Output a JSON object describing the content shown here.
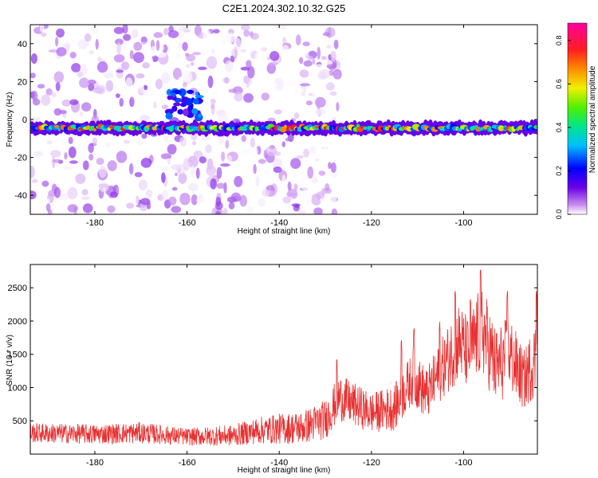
{
  "title": "C2E1.2024.302.10.32.G25",
  "chart_data": [
    {
      "type": "heatmap",
      "xlabel": "Height of straight line (km)",
      "ylabel": "Frequency (Hz)",
      "xlim": [
        -194,
        -84
      ],
      "ylim": [
        -50,
        50
      ],
      "xticks": [
        -180,
        -160,
        -140,
        -120,
        -100
      ],
      "yticks": [
        -40,
        -20,
        0,
        20,
        40
      ],
      "colorbar": {
        "label": "Normalized spectral amplitude",
        "range": [
          0,
          0.88
        ],
        "ticks": [
          0.0,
          0.2,
          0.4,
          0.6,
          0.8
        ],
        "colormap": "rainbow (white-purple-blue-cyan-green-yellow-orange-red-magenta)"
      },
      "features": [
        {
          "description": "main band",
          "x_range": [
            -194,
            -84
          ],
          "frequency_center": -4.5,
          "amplitude_range": [
            0.2,
            0.8
          ]
        },
        {
          "description": "secondary patch",
          "x_range": [
            -164,
            -157
          ],
          "frequency_range": [
            0,
            15
          ],
          "amplitude_range": [
            0.1,
            0.3
          ]
        },
        {
          "description": "diffuse noise",
          "x_range": [
            -194,
            -127
          ],
          "frequency_range": [
            -50,
            50
          ],
          "amplitude_range": [
            0.0,
            0.1
          ]
        }
      ]
    },
    {
      "type": "line",
      "xlabel": "Height of straight line (km)",
      "ylabel": "SNR (10 * v/v)",
      "xlim": [
        -194,
        -84
      ],
      "ylim": [
        0,
        2850
      ],
      "xticks": [
        -180,
        -160,
        -140,
        -120,
        -100
      ],
      "yticks": [
        500,
        1000,
        1500,
        2000,
        2500
      ],
      "series_color": "#e83030",
      "envelope": {
        "x": [
          -194,
          -180,
          -170,
          -160,
          -150,
          -145,
          -140,
          -135,
          -130,
          -127,
          -120,
          -115,
          -111,
          -108,
          -105,
          -101,
          -99,
          -96,
          -93,
          -90,
          -87,
          -84
        ],
        "y": [
          320,
          300,
          320,
          260,
          280,
          350,
          380,
          400,
          520,
          850,
          620,
          700,
          1150,
          900,
          1250,
          1700,
          1500,
          1900,
          1300,
          1500,
          1100,
          1500
        ],
        "amp": [
          150,
          150,
          160,
          130,
          160,
          200,
          230,
          250,
          300,
          350,
          300,
          350,
          400,
          400,
          450,
          600,
          550,
          700,
          600,
          600,
          450,
          600
        ]
      },
      "peaks": [
        {
          "x": -96.3,
          "y": 2820
        },
        {
          "x": -98.5,
          "y": 2350
        },
        {
          "x": -101.8,
          "y": 2470
        },
        {
          "x": -90.5,
          "y": 2460
        },
        {
          "x": -110.8,
          "y": 1900
        },
        {
          "x": -113.5,
          "y": 1720
        },
        {
          "x": -127.5,
          "y": 1430
        },
        {
          "x": -105.2,
          "y": 2000
        },
        {
          "x": -84.2,
          "y": 2450
        }
      ]
    }
  ]
}
